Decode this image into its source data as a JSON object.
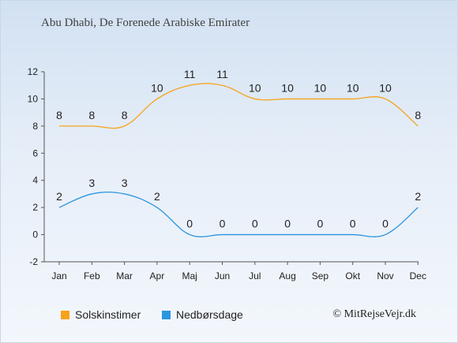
{
  "page": {
    "title": "Abu Dhabi, De Forenede Arabiske Emirater",
    "credit": "© MitRejseVejr.dk"
  },
  "chart_data": {
    "type": "line",
    "categories": [
      "Jan",
      "Feb",
      "Mar",
      "Apr",
      "Maj",
      "Jun",
      "Jul",
      "Aug",
      "Sep",
      "Okt",
      "Nov",
      "Dec"
    ],
    "series": [
      {
        "name": "Solskinstimer",
        "color": "#f7a21b",
        "values": [
          8,
          8,
          8,
          10,
          11,
          11,
          10,
          10,
          10,
          10,
          10,
          8
        ]
      },
      {
        "name": "Nedbørsdage",
        "color": "#2b95e0",
        "values": [
          2,
          3,
          3,
          2,
          0,
          0,
          0,
          0,
          0,
          0,
          0,
          2
        ]
      }
    ],
    "ylim": [
      -2,
      12
    ],
    "yticks": [
      -2,
      0,
      2,
      4,
      6,
      8,
      10,
      12
    ],
    "grid": false,
    "legend": "bottom-left"
  }
}
